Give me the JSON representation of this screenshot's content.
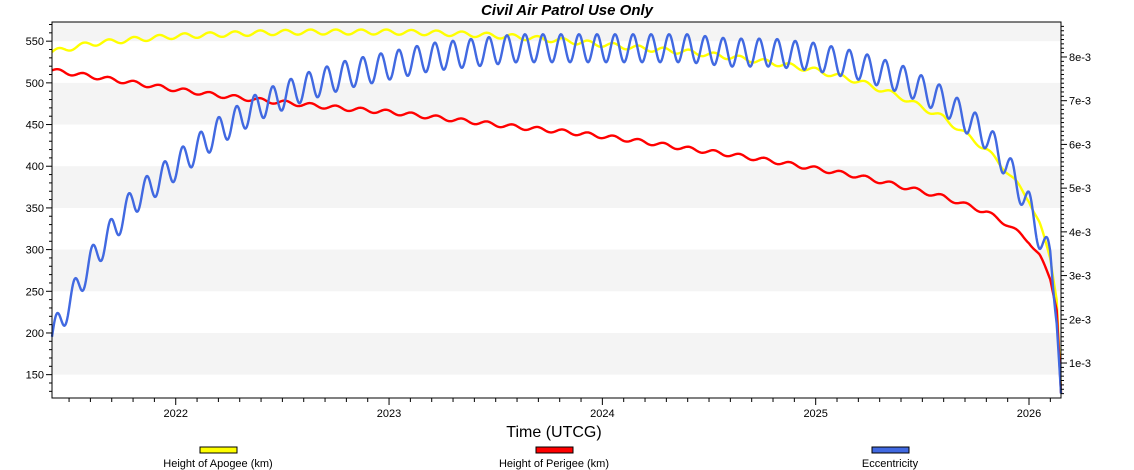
{
  "chart_data": {
    "type": "line",
    "title": "Civil Air Patrol Use Only",
    "xlabel": "Time (UTCG)",
    "ylabel": "",
    "y2label": "",
    "grid": "horizontal alternating bands",
    "legend_position": "bottom",
    "xlim": [
      2021.42,
      2026.15
    ],
    "ylim": [
      122,
      573
    ],
    "y2lim": [
      0.0002,
      0.0088
    ],
    "x_ticks": [
      2022,
      2023,
      2024,
      2025,
      2026
    ],
    "x_tick_labels": [
      "2022",
      "2023",
      "2024",
      "2025",
      "2026"
    ],
    "y_ticks": [
      150,
      200,
      250,
      300,
      350,
      400,
      450,
      500,
      550
    ],
    "y_tick_labels": [
      "150",
      "200",
      "250",
      "300",
      "350",
      "400",
      "450",
      "500",
      "550"
    ],
    "y2_ticks": [
      0.001,
      0.002,
      0.003,
      0.004,
      0.005,
      0.006,
      0.007,
      0.008
    ],
    "y2_tick_labels": [
      "1e-3",
      "2e-3",
      "3e-3",
      "4e-3",
      "5e-3",
      "6e-3",
      "7e-3",
      "8e-3"
    ],
    "series": [
      {
        "name": "Height of Apogee (km)",
        "axis": "left",
        "color": "#ffff00",
        "x": [
          2021.42,
          2021.6,
          2021.8,
          2022.0,
          2022.2,
          2022.4,
          2022.6,
          2022.8,
          2023.0,
          2023.2,
          2023.4,
          2023.6,
          2023.8,
          2024.0,
          2024.2,
          2024.4,
          2024.6,
          2024.8,
          2025.0,
          2025.2,
          2025.4,
          2025.6,
          2025.8,
          2025.9,
          2026.0,
          2026.05,
          2026.1,
          2026.13,
          2026.15
        ],
        "values": [
          537,
          547,
          552,
          556,
          558,
          560,
          561,
          561,
          561,
          560,
          558,
          555,
          551,
          546,
          541,
          537,
          531,
          524,
          515,
          502,
          483,
          458,
          420,
          393,
          360,
          330,
          290,
          240,
          130
        ],
        "oscillation": {
          "amplitude": 3,
          "cycles": 40
        }
      },
      {
        "name": "Height of Perigee (km)",
        "axis": "left",
        "color": "#ff0000",
        "x": [
          2021.42,
          2021.6,
          2021.8,
          2022.0,
          2022.2,
          2022.4,
          2022.6,
          2022.8,
          2023.0,
          2023.2,
          2023.4,
          2023.6,
          2023.8,
          2024.0,
          2024.2,
          2024.4,
          2024.6,
          2024.8,
          2025.0,
          2025.2,
          2025.4,
          2025.6,
          2025.8,
          2025.9,
          2026.0,
          2026.05,
          2026.1,
          2026.13,
          2026.15
        ],
        "values": [
          515,
          508,
          500,
          492,
          485,
          479,
          474,
          469,
          465,
          459,
          453,
          447,
          442,
          436,
          429,
          421,
          414,
          406,
          397,
          388,
          376,
          363,
          345,
          330,
          310,
          292,
          265,
          228,
          128
        ],
        "oscillation": {
          "amplitude": 2.5,
          "cycles": 40
        }
      },
      {
        "name": "Eccentricity",
        "axis": "right",
        "color": "#4169e1",
        "x": [
          2021.42,
          2021.6,
          2021.8,
          2022.0,
          2022.2,
          2022.4,
          2022.6,
          2022.8,
          2023.0,
          2023.2,
          2023.4,
          2023.6,
          2023.8,
          2024.0,
          2024.2,
          2024.4,
          2024.6,
          2024.8,
          2025.0,
          2025.2,
          2025.4,
          2025.6,
          2025.8,
          2025.9,
          2026.0,
          2026.05,
          2026.1,
          2026.13,
          2026.15
        ],
        "values": [
          0.0016,
          0.0033,
          0.0047,
          0.0055,
          0.0063,
          0.0069,
          0.0073,
          0.0076,
          0.0078,
          0.008,
          0.0081,
          0.0082,
          0.0082,
          0.0082,
          0.0082,
          0.0082,
          0.0081,
          0.0081,
          0.008,
          0.0078,
          0.0075,
          0.007,
          0.0062,
          0.0055,
          0.0046,
          0.0039,
          0.0034,
          0.002,
          0.0003
        ],
        "oscillation": {
          "amplitude": 0.00032,
          "cycles": 56
        }
      }
    ]
  }
}
